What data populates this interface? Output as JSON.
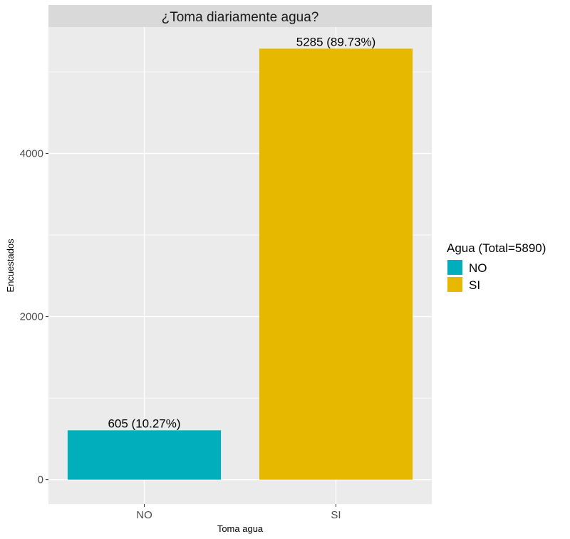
{
  "chart_data": {
    "type": "bar",
    "title": "¿Toma diariamente agua?",
    "xlabel": "Toma agua",
    "ylabel": "Encuestados",
    "categories": [
      "NO",
      "SI"
    ],
    "values": [
      605,
      5285
    ],
    "data_labels": [
      "605 (10.27%)",
      "5285 (89.73%)"
    ],
    "ylim": [
      -300,
      5550
    ],
    "yticks": [
      0,
      2000,
      4000
    ],
    "ytick_labels": [
      "0",
      "2000",
      "4000"
    ],
    "grid": true,
    "legend": {
      "title": "Agua (Total=5890)",
      "placement": "right",
      "entries": [
        "NO",
        "SI"
      ]
    },
    "colors": {
      "NO": "#00AFBB",
      "SI": "#E7B800",
      "panel_bg": "#EBEBEB",
      "strip_bg": "#D9D9D9",
      "grid": "#FFFFFF"
    }
  }
}
